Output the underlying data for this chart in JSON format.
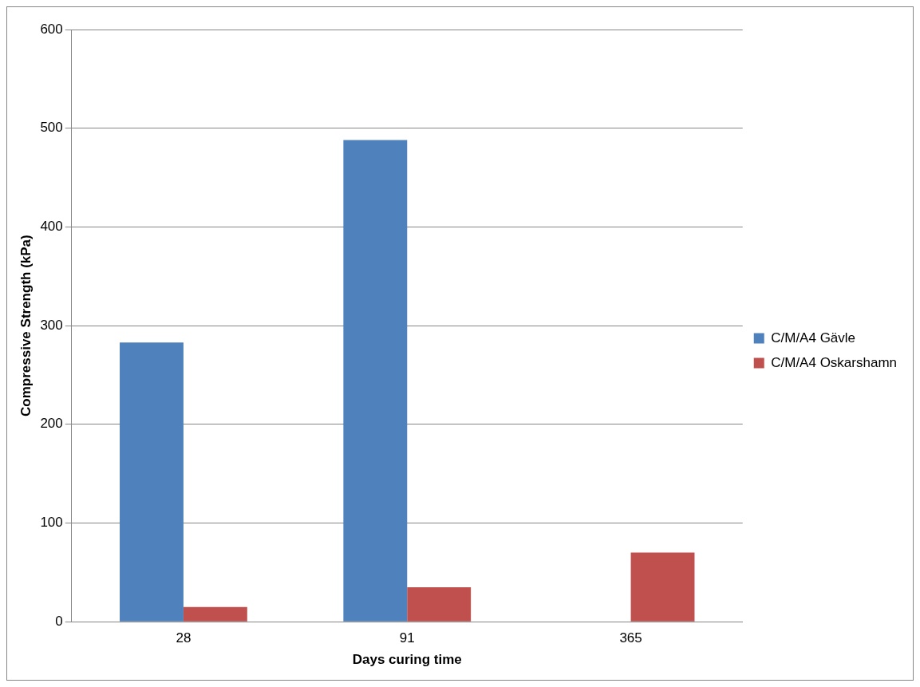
{
  "chart_data": {
    "type": "bar",
    "xlabel": "Days curing time",
    "ylabel": "Compressive Strength (kPa)",
    "categories": [
      "28",
      "91",
      "365"
    ],
    "series": [
      {
        "name": "C/M/A4 Gävle",
        "color": "#4f81bd",
        "values": [
          283,
          488,
          null
        ]
      },
      {
        "name": "C/M/A4 Oskarshamn",
        "color": "#c0504d",
        "values": [
          15,
          35,
          70
        ]
      }
    ],
    "ylim": [
      0,
      600
    ],
    "yticks": [
      0,
      100,
      200,
      300,
      400,
      500,
      600
    ],
    "grid": "y",
    "legend": "right"
  }
}
